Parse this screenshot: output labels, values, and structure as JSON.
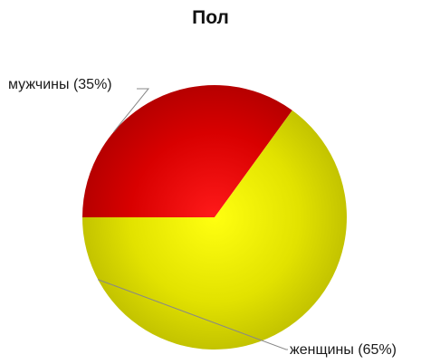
{
  "chart_data": {
    "type": "pie",
    "title": "Пол",
    "slices": [
      {
        "label": "мужчины (35%)",
        "value": 35,
        "color": "#e00000"
      },
      {
        "label": "женщины (65%)",
        "value": 65,
        "color": "#e6e600"
      }
    ]
  }
}
